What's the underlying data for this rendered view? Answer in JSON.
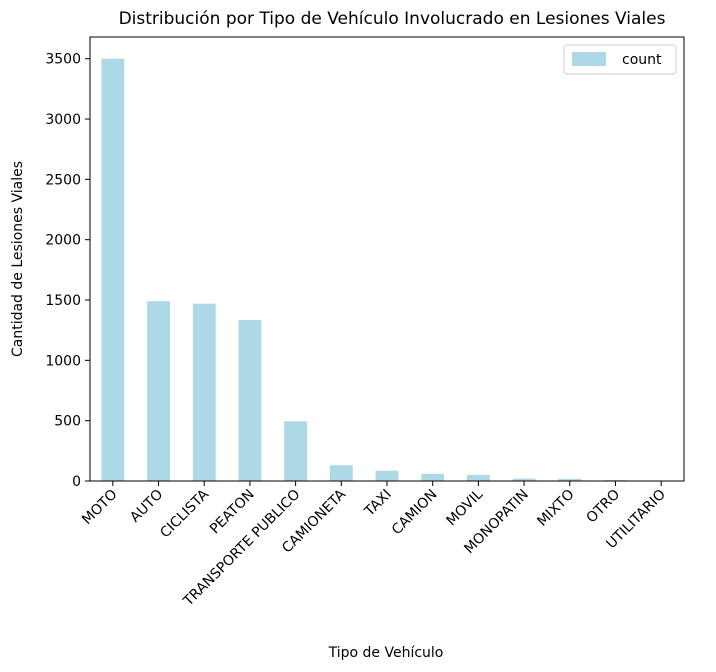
{
  "chart_data": {
    "type": "bar",
    "title": "Distribución por Tipo de Vehículo Involucrado en Lesiones Viales",
    "xlabel": "Tipo de Vehículo",
    "ylabel": "Cantidad de Lesiones Viales",
    "categories": [
      "MOTO",
      "AUTO",
      "CICLISTA",
      "PEATON",
      "TRANSPORTE PUBLICO",
      "CAMIONETA",
      "TAXI",
      "CAMION",
      "MOVIL",
      "MONOPATIN",
      "MIXTO",
      "OTRO",
      "UTILITARIO"
    ],
    "series": [
      {
        "name": "count",
        "values": [
          3500,
          1490,
          1470,
          1335,
          495,
          130,
          85,
          60,
          50,
          20,
          18,
          8,
          4
        ]
      }
    ],
    "ylim": [
      0,
      3680
    ],
    "yticks": [
      0,
      500,
      1000,
      1500,
      2000,
      2500,
      3000,
      3500
    ],
    "legend_position": "top-right",
    "bar_color": "#add8e6",
    "grid": false
  }
}
